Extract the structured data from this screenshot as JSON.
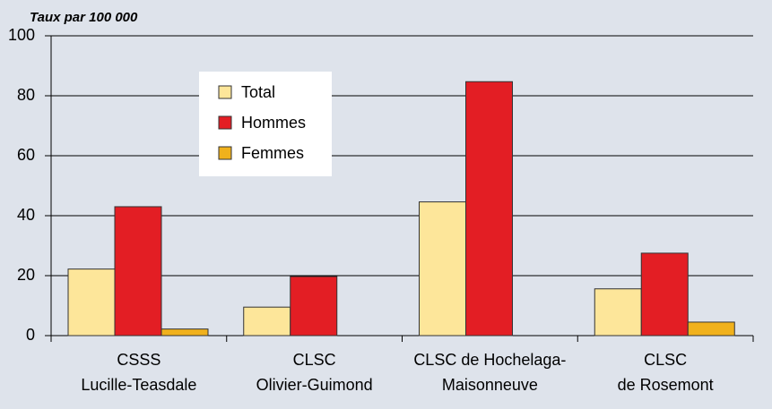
{
  "chart_data": {
    "type": "bar",
    "y_label": "Taux par 100 000",
    "categories": [
      [
        "CSSS",
        "Lucille-Teasdale"
      ],
      [
        "CLSC",
        "Olivier-Guimond"
      ],
      [
        "CLSC de Hochelaga-",
        "Maisonneuve"
      ],
      [
        "CLSC",
        "de Rosemont"
      ]
    ],
    "series": [
      {
        "name": "Total",
        "color": "#fde69a",
        "values": [
          22.2,
          9.5,
          44.6,
          15.6
        ]
      },
      {
        "name": "Hommes",
        "color": "#e31e24",
        "values": [
          43,
          19.7,
          84.7,
          27.5
        ]
      },
      {
        "name": "Femmes",
        "color": "#f0b11c",
        "values": [
          2.2,
          0,
          0,
          4.5
        ]
      }
    ],
    "ylim": [
      0,
      100
    ],
    "yticks": [
      0,
      20,
      40,
      60,
      80,
      100
    ],
    "grid": true,
    "legend": "upper left"
  }
}
